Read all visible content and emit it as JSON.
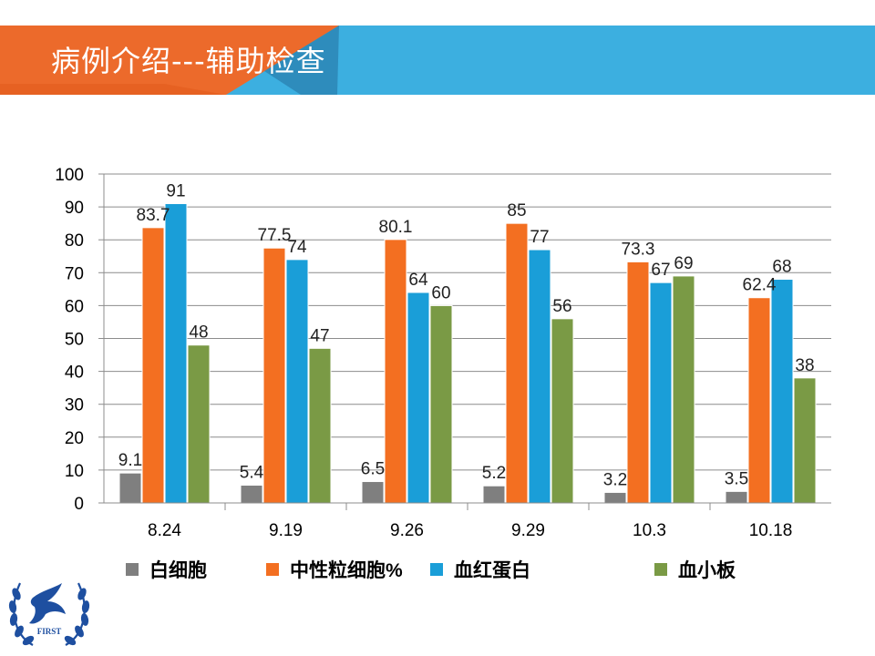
{
  "slide": {
    "title": "病例介绍---辅助检查"
  },
  "colors": {
    "banner_blue": "#3CAFE0",
    "banner_orange": "#EC6A2B",
    "banner_dark_blue": "#2C86B5",
    "logo_blue": "#1E4FA0"
  },
  "logo": {
    "text": "FIRST"
  },
  "chart_data": {
    "type": "bar",
    "categories": [
      "8.24",
      "9.19",
      "9.26",
      "9.29",
      "10.3",
      "10.18"
    ],
    "series": [
      {
        "name": "白细胞",
        "color": "#7F7F7F",
        "values": [
          9.1,
          5.4,
          6.5,
          5.2,
          3.2,
          3.5
        ]
      },
      {
        "name": "中性粒细胞%",
        "color": "#F36F21",
        "values": [
          83.7,
          77.5,
          80.1,
          85,
          73.3,
          62.4
        ]
      },
      {
        "name": "血红蛋白",
        "color": "#1A9ED8",
        "values": [
          91,
          74,
          64,
          77,
          67,
          68
        ]
      },
      {
        "name": "血小板",
        "color": "#7A9A45",
        "values": [
          48,
          47,
          60,
          56,
          69,
          38
        ]
      }
    ],
    "ylim": [
      0,
      100
    ],
    "yticks": [
      0,
      10,
      20,
      30,
      40,
      50,
      60,
      70,
      80,
      90,
      100
    ],
    "grid": true,
    "legend": "bottom",
    "data_labels": true
  }
}
